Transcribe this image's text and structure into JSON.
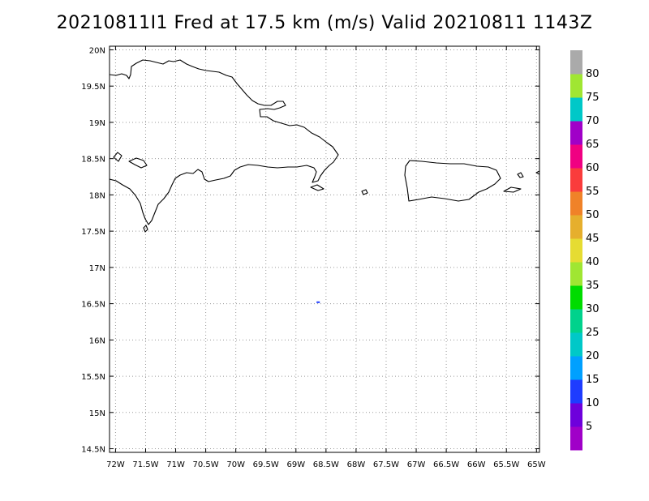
{
  "title": "20210811I1 Fred at 17.5 km (m/s) Valid 20210811 1143Z",
  "map": {
    "projection": "lat-lon",
    "lon_range": [
      -72.1,
      -64.95
    ],
    "lat_range": [
      14.45,
      20.05
    ],
    "gridlines": "dotted",
    "x_tick_labels": [
      "72W",
      "71.5W",
      "71W",
      "70.5W",
      "70W",
      "69.5W",
      "69W",
      "68.5W",
      "68W",
      "67.5W",
      "67W",
      "66.5W",
      "66W",
      "65.5W",
      "65W"
    ],
    "x_tick_values": [
      -72,
      -71.5,
      -71,
      -70.5,
      -70,
      -69.5,
      -69,
      -68.5,
      -68,
      -67.5,
      -67,
      -66.5,
      -66,
      -65.5,
      -65
    ],
    "y_tick_labels": [
      "14.5N",
      "15N",
      "15.5N",
      "16N",
      "16.5N",
      "17N",
      "17.5N",
      "18N",
      "18.5N",
      "19N",
      "19.5N",
      "20N"
    ],
    "y_tick_values": [
      14.5,
      15,
      15.5,
      16,
      16.5,
      17,
      17.5,
      18,
      18.5,
      19,
      19.5,
      20
    ],
    "data_marks": [
      {
        "lon": -68.63,
        "lat": 16.52,
        "value_range": "10-15",
        "color": "#1e3cff"
      }
    ]
  },
  "colorbar": {
    "labels": [
      "5",
      "10",
      "15",
      "20",
      "25",
      "30",
      "35",
      "40",
      "45",
      "50",
      "55",
      "60",
      "65",
      "70",
      "75",
      "80"
    ],
    "colors": [
      "#a000c8",
      "#6e00dc",
      "#1e3cff",
      "#00a0ff",
      "#00c8c8",
      "#00d28c",
      "#00dc00",
      "#a0e632",
      "#e6dc32",
      "#e6af2d",
      "#f08228",
      "#fa3c3c",
      "#f00082",
      "#a000c8",
      "#00c8c8",
      "#a0e632",
      "#aaaaaa"
    ]
  }
}
